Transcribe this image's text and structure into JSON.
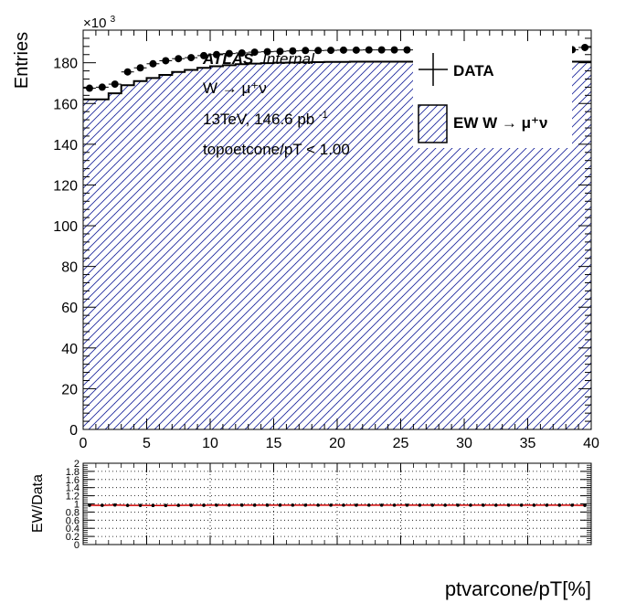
{
  "chart_data": [
    {
      "type": "histogram",
      "panel": "main",
      "ylabel": "Entries",
      "y_multiplier_label": "×10",
      "y_multiplier_exponent": "3",
      "xlim": [
        0,
        40
      ],
      "ylim": [
        0,
        196
      ],
      "xticks": [
        0,
        5,
        10,
        15,
        20,
        25,
        30,
        35,
        40
      ],
      "yticks": [
        0,
        20,
        40,
        60,
        80,
        100,
        120,
        140,
        160,
        180
      ],
      "annotations": {
        "atlas": "ATLAS",
        "internal": "Internal",
        "process": "W → μ⁺ν",
        "lumi": "13TeV, 146.6 pb",
        "lumi_exp": "-1",
        "cut": "topoetcone/pT < 1.00"
      },
      "legend": [
        {
          "label": "DATA",
          "style": "marker"
        },
        {
          "label": "EW W  → μ⁺ν",
          "style": "hatched"
        }
      ],
      "legend_position": "top-right",
      "colors": {
        "hatch": "#1f2a9e",
        "line": "#000000",
        "marker": "#000000"
      },
      "bin_edges": [
        0,
        1,
        2,
        3,
        4,
        5,
        6,
        7,
        8,
        9,
        10,
        11,
        12,
        13,
        14,
        15,
        16,
        17,
        18,
        19,
        20,
        21,
        22,
        23,
        24,
        25,
        26,
        27,
        28,
        29,
        30,
        31,
        32,
        33,
        34,
        35,
        36,
        37,
        38,
        39,
        40
      ],
      "series": [
        {
          "name": "EW W  → μ⁺ν",
          "values": [
            162,
            162,
            165,
            169,
            171,
            172.5,
            174,
            175.5,
            176.5,
            177.5,
            178.3,
            178.8,
            179.3,
            179.6,
            179.8,
            180,
            180.1,
            180.2,
            180.3,
            180.4,
            180.4,
            180.5,
            180.5,
            180.5,
            180.5,
            180.5,
            180.5,
            180.5,
            180.5,
            180.5,
            180.5,
            180.5,
            180.5,
            180.5,
            180.5,
            180.5,
            180.5,
            180.5,
            180.5,
            180.5
          ]
        },
        {
          "name": "DATA",
          "values": [
            167.5,
            168,
            169.5,
            175.5,
            177.5,
            179.5,
            181,
            182,
            182.5,
            183.5,
            184,
            184.5,
            184.8,
            185.2,
            185.4,
            185.6,
            185.8,
            186,
            186,
            186.1,
            186.2,
            186.2,
            186.3,
            186.3,
            186.3,
            186.3,
            186.4,
            186.4,
            186.4,
            186.4,
            186.4,
            186.4,
            186.4,
            186.4,
            186.4,
            186.4,
            186.4,
            186.4,
            186.4,
            187.5
          ]
        }
      ]
    },
    {
      "type": "ratio",
      "panel": "ratio",
      "ylabel": "EW/Data",
      "xlabel": "ptvarcone/pT[%]",
      "xlim": [
        0,
        40
      ],
      "ylim": [
        0,
        2
      ],
      "xticks": [
        0,
        5,
        10,
        15,
        20,
        25,
        30,
        35,
        40
      ],
      "ytick_labels": [
        "0",
        "0.2",
        "0.4",
        "0.6",
        "0.8",
        "1",
        "1.2",
        "1.4",
        "1.6",
        "1.8",
        "2"
      ],
      "grid": true,
      "colors": {
        "line": "#cc0000",
        "marker": "#000000"
      },
      "values": [
        0.967,
        0.964,
        0.973,
        0.963,
        0.963,
        0.961,
        0.961,
        0.964,
        0.967,
        0.967,
        0.969,
        0.969,
        0.97,
        0.97,
        0.97,
        0.97,
        0.969,
        0.969,
        0.969,
        0.969,
        0.969,
        0.969,
        0.969,
        0.969,
        0.969,
        0.969,
        0.968,
        0.968,
        0.968,
        0.968,
        0.968,
        0.968,
        0.968,
        0.968,
        0.968,
        0.968,
        0.968,
        0.968,
        0.968,
        0.963
      ]
    }
  ]
}
